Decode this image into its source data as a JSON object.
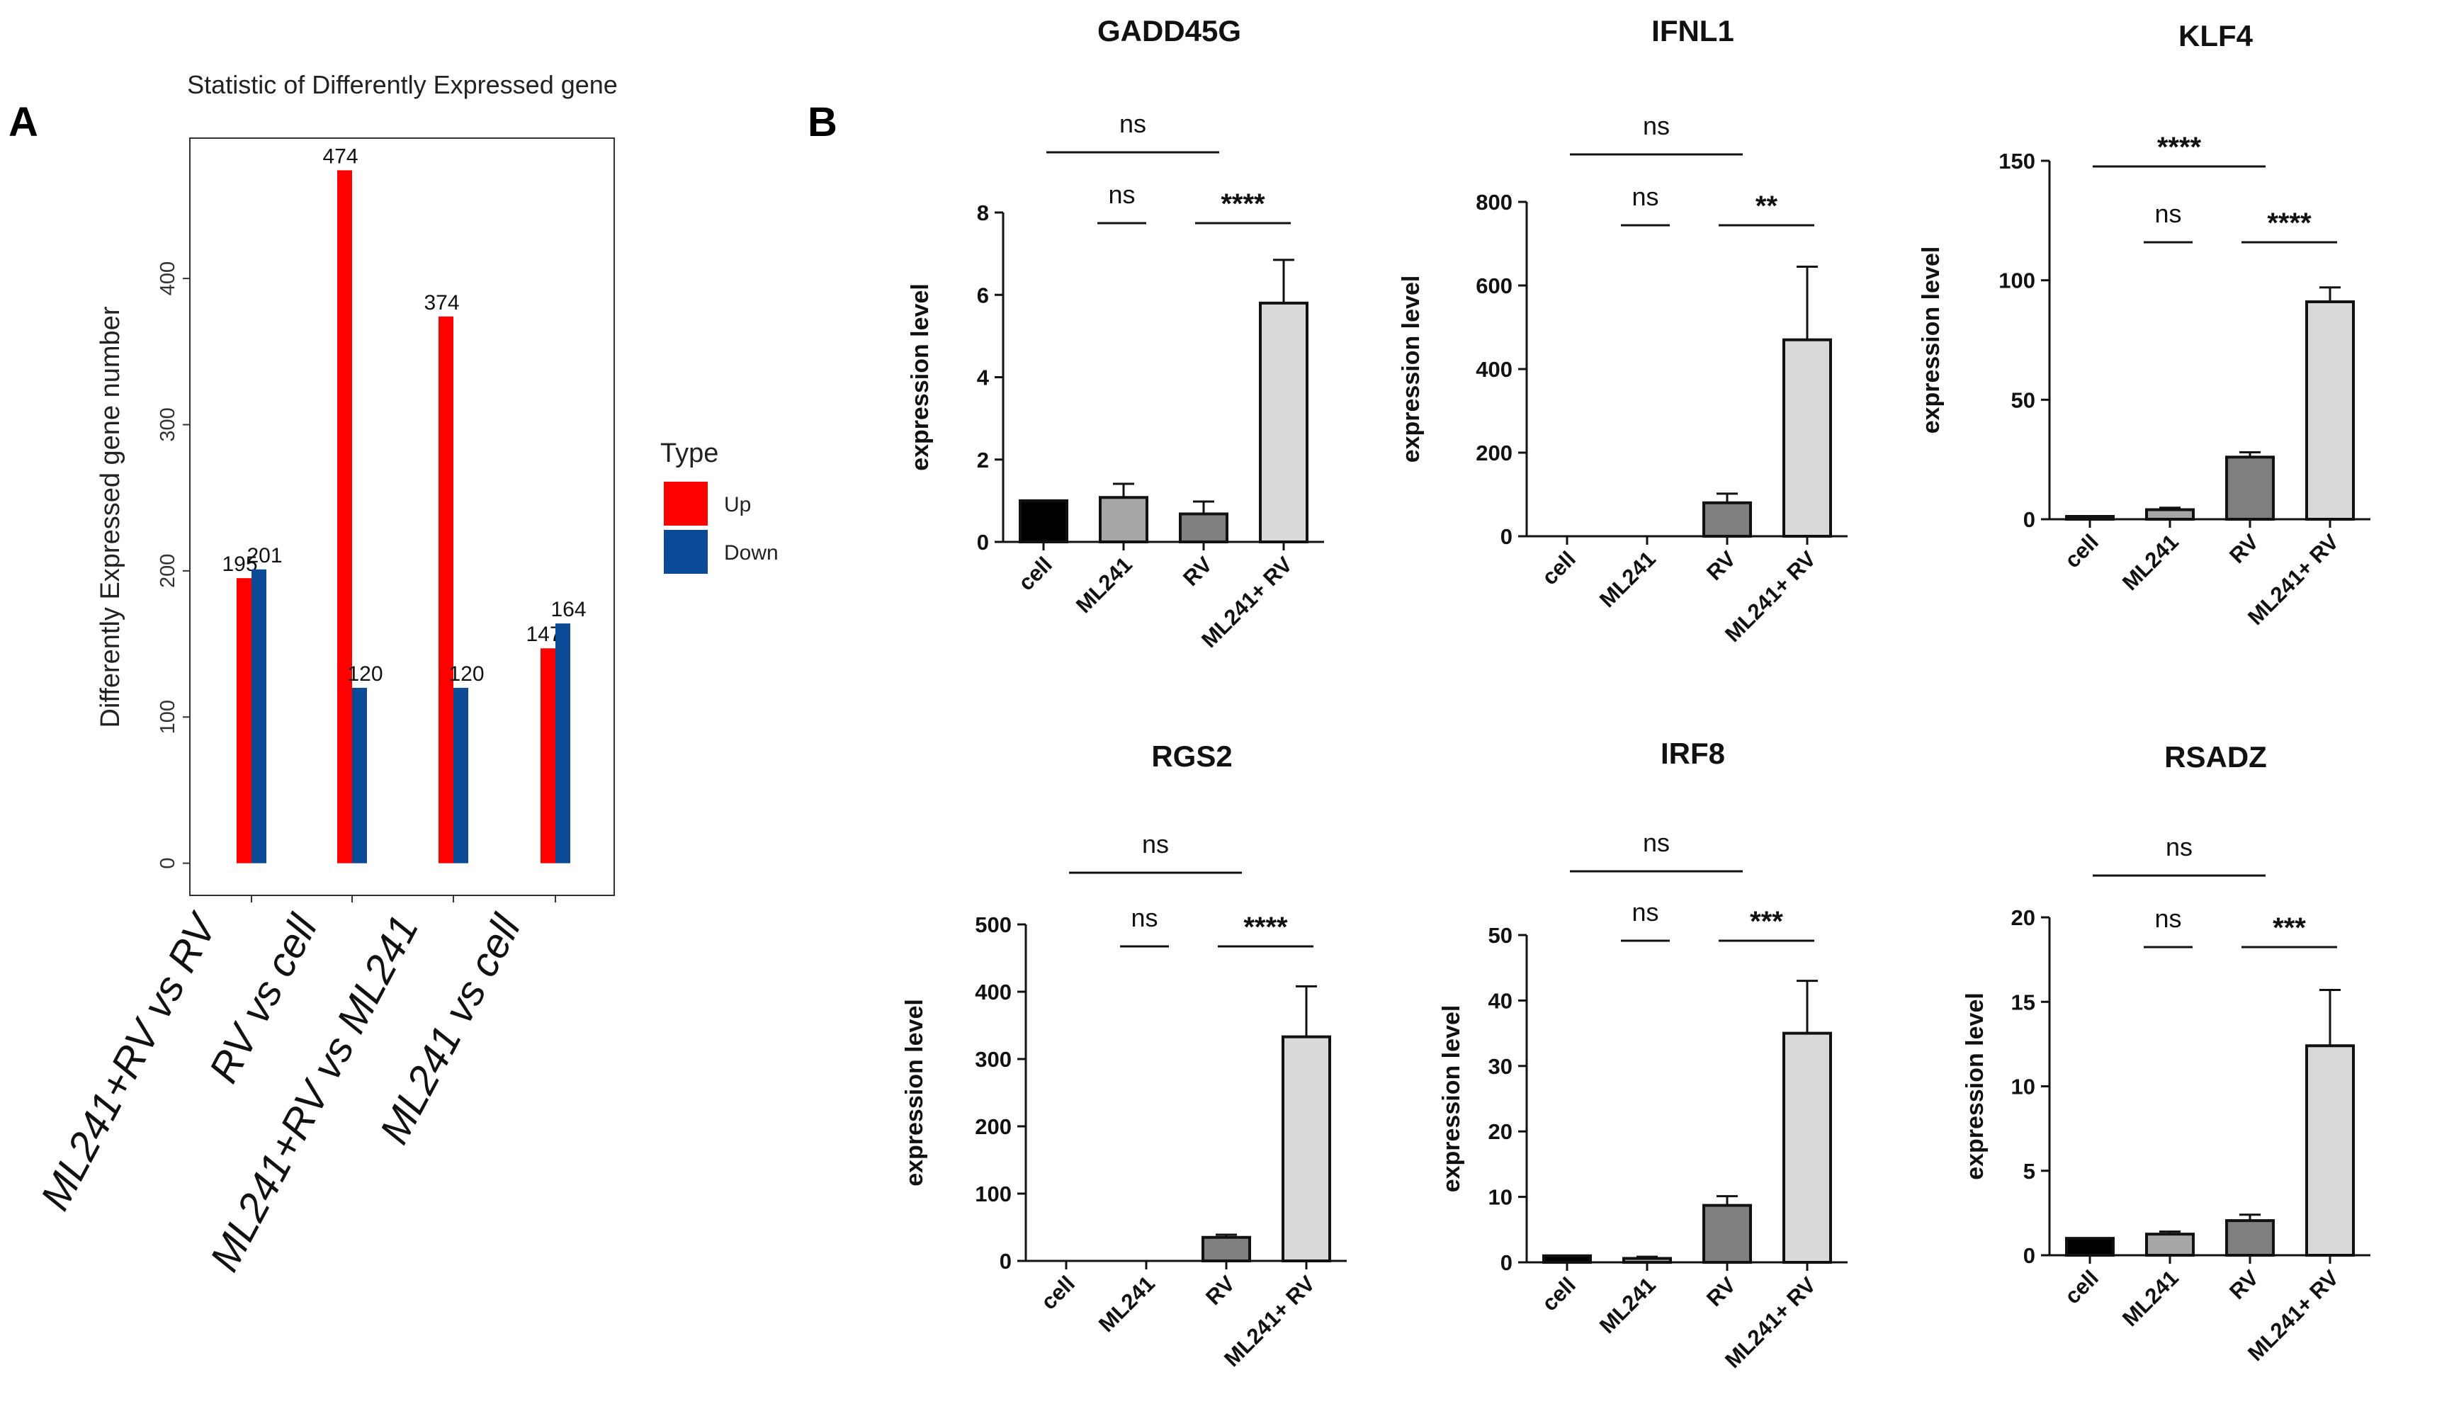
{
  "panel_labels": {
    "a": "A",
    "b": "B"
  },
  "colors": {
    "up": "#ff0000",
    "down": "#0b4a96",
    "cell": "#000000",
    "ml241": "#a6a6a6",
    "rv": "#808080",
    "combo": "#d9d9d9"
  },
  "chart_data": [
    {
      "type": "bar",
      "title": "Statistic of Differently Expressed gene",
      "xlabel": "",
      "ylabel": "Differently Expressed gene number",
      "categories": [
        "ML241+RV vs RV",
        "RV vs cell",
        "ML241+RV vs ML241",
        "ML241 vs cell"
      ],
      "series": [
        {
          "name": "Up",
          "values": [
            195,
            474,
            374,
            147
          ],
          "labels": [
            "195",
            "474",
            "374",
            "147"
          ]
        },
        {
          "name": "Down",
          "values": [
            201,
            120,
            120,
            164
          ],
          "labels": [
            "201",
            "120",
            "120",
            "164"
          ]
        }
      ],
      "ylim": [
        -22,
        496
      ],
      "yticks": [
        0,
        100,
        200,
        300,
        400
      ],
      "ytick_labels": [
        "0",
        "100",
        "200",
        "300",
        "400"
      ],
      "legend": {
        "title": "Type",
        "items": [
          "Up",
          "Down"
        ],
        "position": "right"
      }
    },
    {
      "type": "bar",
      "title": "GADD45G",
      "ylabel": "expression level",
      "categories": [
        "cell",
        "ML241",
        "RV",
        "ML241+ RV"
      ],
      "values": [
        1.0,
        1.08,
        0.68,
        5.8
      ],
      "errors": [
        0,
        0.33,
        0.3,
        1.05
      ],
      "ylim": [
        0,
        8
      ],
      "yticks": [
        0,
        2,
        4,
        6,
        8
      ],
      "ytick_labels": [
        "0",
        "2",
        "4",
        "6",
        "8"
      ],
      "significance": [
        {
          "from": 0,
          "to": 2,
          "label": "ns"
        },
        {
          "from": 0,
          "to": 1,
          "label": "ns"
        },
        {
          "from": 2,
          "to": 3,
          "label": "****"
        }
      ]
    },
    {
      "type": "bar",
      "title": "IFNL1",
      "ylabel": "expression level",
      "categories": [
        "cell",
        "ML241",
        "RV",
        "ML241+ RV"
      ],
      "values": [
        0,
        0,
        80,
        470
      ],
      "errors": [
        0,
        0,
        22,
        175
      ],
      "ylim": [
        0,
        800
      ],
      "yticks": [
        0,
        200,
        400,
        600,
        800
      ],
      "ytick_labels": [
        "0",
        "200",
        "400",
        "600",
        "800"
      ],
      "significance": [
        {
          "from": 0,
          "to": 2,
          "label": "ns"
        },
        {
          "from": 0,
          "to": 1,
          "label": "ns"
        },
        {
          "from": 2,
          "to": 3,
          "label": "**"
        }
      ]
    },
    {
      "type": "bar",
      "title": "KLF4",
      "ylabel": "expression level",
      "categories": [
        "cell",
        "ML241",
        "RV",
        "ML241+ RV"
      ],
      "values": [
        1,
        4,
        26,
        91
      ],
      "errors": [
        0,
        0.8,
        2,
        6
      ],
      "ylim": [
        0,
        150
      ],
      "yticks": [
        0,
        50,
        100,
        150
      ],
      "ytick_labels": [
        "0",
        "50",
        "100",
        "150"
      ],
      "significance": [
        {
          "from": 0,
          "to": 2,
          "label": "****"
        },
        {
          "from": 0,
          "to": 1,
          "label": "ns"
        },
        {
          "from": 2,
          "to": 3,
          "label": "****"
        }
      ]
    },
    {
      "type": "bar",
      "title": "RGS2",
      "ylabel": "expression level",
      "categories": [
        "cell",
        "ML241",
        "RV",
        "ML241+ RV"
      ],
      "values": [
        0,
        0,
        35,
        333
      ],
      "errors": [
        0,
        0,
        4,
        75
      ],
      "ylim": [
        0,
        500
      ],
      "yticks": [
        0,
        100,
        200,
        300,
        400,
        500
      ],
      "ytick_labels": [
        "0",
        "100",
        "200",
        "300",
        "400",
        "500"
      ],
      "significance": [
        {
          "from": 0,
          "to": 2,
          "label": "ns"
        },
        {
          "from": 0,
          "to": 1,
          "label": "ns"
        },
        {
          "from": 2,
          "to": 3,
          "label": "****"
        }
      ]
    },
    {
      "type": "bar",
      "title": "IRF8",
      "ylabel": "expression level",
      "categories": [
        "cell",
        "ML241",
        "RV",
        "ML241+ RV"
      ],
      "values": [
        1,
        0.6,
        8.7,
        35
      ],
      "errors": [
        0,
        0.25,
        1.4,
        8
      ],
      "ylim": [
        0,
        50
      ],
      "yticks": [
        0,
        10,
        20,
        30,
        40,
        50
      ],
      "ytick_labels": [
        "0",
        "10",
        "20",
        "30",
        "40",
        "50"
      ],
      "significance": [
        {
          "from": 0,
          "to": 2,
          "label": "ns"
        },
        {
          "from": 0,
          "to": 1,
          "label": "ns"
        },
        {
          "from": 2,
          "to": 3,
          "label": "***"
        }
      ]
    },
    {
      "type": "bar",
      "title": "RSADZ",
      "ylabel": "expression level",
      "categories": [
        "cell",
        "ML241",
        "RV",
        "ML241+ RV"
      ],
      "values": [
        1,
        1.25,
        2.05,
        12.4
      ],
      "errors": [
        0,
        0.15,
        0.35,
        3.3
      ],
      "ylim": [
        0,
        20
      ],
      "yticks": [
        0,
        5,
        10,
        15,
        20
      ],
      "ytick_labels": [
        "0",
        "5",
        "10",
        "15",
        "20"
      ],
      "significance": [
        {
          "from": 0,
          "to": 2,
          "label": "ns"
        },
        {
          "from": 0,
          "to": 1,
          "label": "ns"
        },
        {
          "from": 2,
          "to": 3,
          "label": "***"
        }
      ]
    }
  ]
}
